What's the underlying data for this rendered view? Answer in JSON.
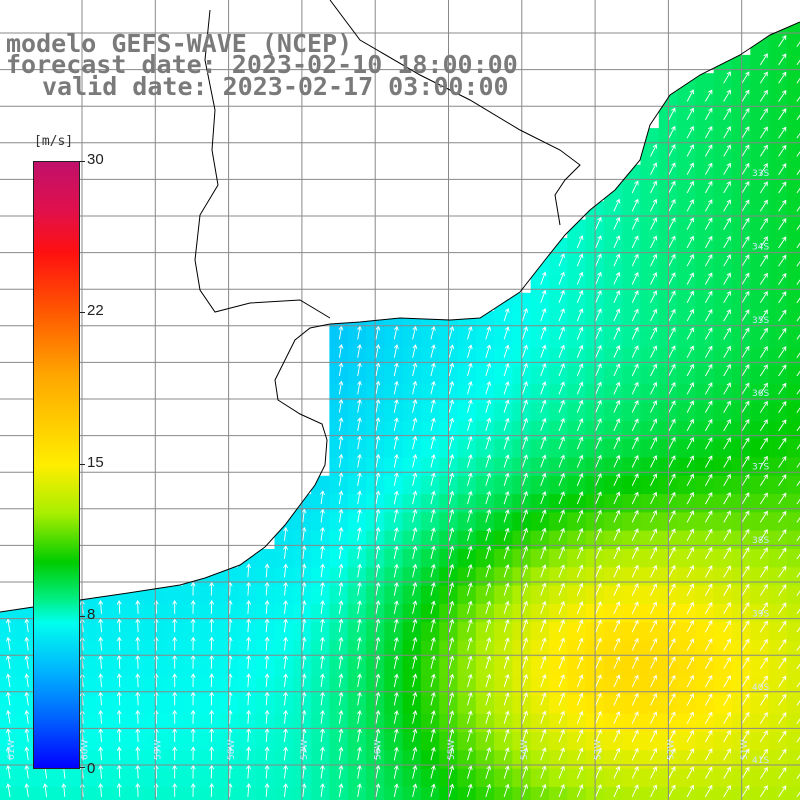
{
  "titles": {
    "line1": "modelo GEFS-WAVE (NCEP)",
    "line2": "forecast date: 2023-02-10 18:00:00",
    "line3": "valid date: 2023-02-17 03:00:00"
  },
  "colorbar": {
    "unit": "[m/s]",
    "ticks": [
      "30",
      "22",
      "15",
      "8",
      "0"
    ],
    "tick_values": [
      30,
      22,
      15,
      8,
      0
    ],
    "range": [
      0,
      30
    ]
  },
  "map": {
    "lat_labels": [
      "33S",
      "34S",
      "35S",
      "36S",
      "37S",
      "38S",
      "39S",
      "40S",
      "41S"
    ],
    "lon_labels": [
      "61W",
      "60W",
      "59W",
      "58W",
      "57W",
      "56W",
      "55W",
      "54W",
      "53W",
      "52W",
      "51W"
    ],
    "lat_range": [
      -42,
      -31
    ],
    "lon_range": [
      -62,
      -51
    ],
    "quantity": "wind speed",
    "colors": {
      "land": "#ffffff",
      "grid": "#888888",
      "coastline": "#000000",
      "arrows": "#ffffff",
      "title_text": "#7a7a7a"
    }
  }
}
